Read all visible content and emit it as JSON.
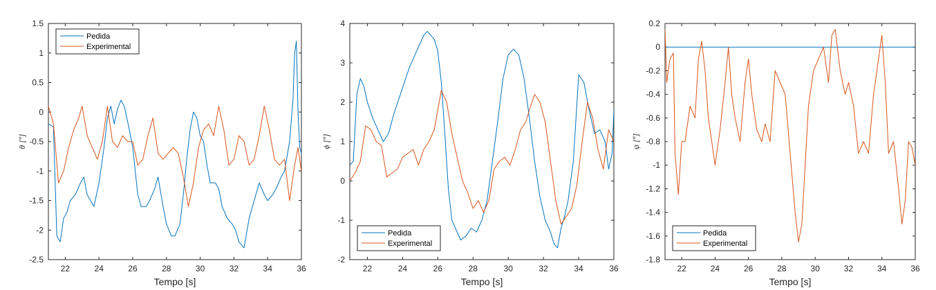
{
  "colors": {
    "pedida": "#0072BD",
    "experimental": "#D95319"
  },
  "chart_data": [
    {
      "type": "line",
      "xlabel": "Tempo [s]",
      "ylabel": "θ [º]",
      "xlim": [
        21,
        36
      ],
      "ylim": [
        -2.5,
        1.5
      ],
      "xticks": [
        22,
        24,
        26,
        28,
        30,
        32,
        34,
        36
      ],
      "yticks": [
        -2.5,
        -2,
        -1.5,
        -1,
        -0.5,
        0,
        0.5,
        1,
        1.5
      ],
      "legend": "top-left",
      "series": [
        {
          "name": "Pedida",
          "x": [
            21,
            21.3,
            21.5,
            21.7,
            21.9,
            22.1,
            22.3,
            22.6,
            22.9,
            23.1,
            23.3,
            23.5,
            23.7,
            24,
            24.3,
            24.5,
            24.7,
            24.9,
            25.1,
            25.3,
            25.5,
            25.8,
            26,
            26.3,
            26.5,
            26.8,
            27,
            27.3,
            27.5,
            27.8,
            28,
            28.3,
            28.5,
            28.8,
            29,
            29.2,
            29.4,
            29.6,
            29.8,
            30,
            30.2,
            30.4,
            30.6,
            30.9,
            31.1,
            31.3,
            31.6,
            31.9,
            32.1,
            32.3,
            32.6,
            32.9,
            33.1,
            33.3,
            33.5,
            33.8,
            34,
            34.3,
            34.5,
            34.8,
            35,
            35.3,
            35.5,
            35.6,
            35.7,
            35.8,
            35.9,
            36
          ],
          "values": [
            -0.2,
            -0.25,
            -2.1,
            -2.2,
            -1.8,
            -1.7,
            -1.5,
            -1.4,
            -1.2,
            -1.1,
            -1.4,
            -1.5,
            -1.6,
            -1.2,
            -0.6,
            -0.1,
            0.1,
            -0.2,
            0.05,
            0.2,
            0.1,
            -0.3,
            -0.6,
            -1.4,
            -1.6,
            -1.6,
            -1.5,
            -1.3,
            -1.1,
            -1.6,
            -1.9,
            -2.1,
            -2.1,
            -1.9,
            -1.4,
            -0.8,
            -0.3,
            0.0,
            -0.1,
            -0.4,
            -0.5,
            -0.9,
            -1.2,
            -1.2,
            -1.3,
            -1.6,
            -1.8,
            -1.9,
            -2.0,
            -2.2,
            -2.3,
            -1.8,
            -1.6,
            -1.4,
            -1.2,
            -1.4,
            -1.5,
            -1.4,
            -1.3,
            -1.1,
            -1.0,
            -0.5,
            0.2,
            1.0,
            1.2,
            0.0,
            -0.6,
            -0.7
          ]
        },
        {
          "name": "Experimental",
          "x": [
            21,
            21.3,
            21.6,
            21.9,
            22.2,
            22.5,
            22.8,
            23,
            23.3,
            23.6,
            23.9,
            24.2,
            24.5,
            24.8,
            25.1,
            25.4,
            25.7,
            26,
            26.3,
            26.6,
            26.9,
            27.2,
            27.5,
            27.8,
            28.1,
            28.4,
            28.7,
            29,
            29.3,
            29.6,
            29.9,
            30.2,
            30.5,
            30.8,
            31.1,
            31.4,
            31.7,
            32,
            32.3,
            32.6,
            32.9,
            33.2,
            33.5,
            33.8,
            34.1,
            34.4,
            34.7,
            35,
            35.3,
            35.6,
            35.8,
            36
          ],
          "values": [
            0.1,
            -0.2,
            -1.2,
            -1.0,
            -0.6,
            -0.3,
            -0.1,
            0.1,
            -0.4,
            -0.6,
            -0.8,
            -0.5,
            0.1,
            -0.5,
            -0.6,
            -0.4,
            -0.5,
            -0.5,
            -0.9,
            -0.8,
            -0.4,
            -0.1,
            -0.7,
            -0.8,
            -0.7,
            -0.6,
            -0.7,
            -1.1,
            -1.6,
            -1.2,
            -0.6,
            -0.3,
            -0.2,
            -0.4,
            0.1,
            -0.3,
            -0.9,
            -0.8,
            -0.4,
            -0.5,
            -0.9,
            -0.8,
            -0.4,
            0.1,
            -0.3,
            -0.8,
            -0.9,
            -0.8,
            -1.5,
            -0.9,
            -0.6,
            -1.0
          ]
        }
      ]
    },
    {
      "type": "line",
      "xlabel": "Tempo [s]",
      "ylabel": "ϕ [º]",
      "xlim": [
        21,
        36
      ],
      "ylim": [
        -2,
        4
      ],
      "xticks": [
        22,
        24,
        26,
        28,
        30,
        32,
        34,
        36
      ],
      "yticks": [
        -2,
        -1,
        0,
        1,
        2,
        3,
        4
      ],
      "legend": "bottom-left",
      "series": [
        {
          "name": "Pedida",
          "x": [
            21,
            21.2,
            21.4,
            21.6,
            21.8,
            22,
            22.3,
            22.6,
            22.9,
            23.2,
            23.5,
            23.8,
            24.1,
            24.4,
            24.7,
            25,
            25.2,
            25.4,
            25.6,
            25.8,
            26,
            26.2,
            26.4,
            26.6,
            26.8,
            27,
            27.3,
            27.6,
            27.9,
            28.2,
            28.5,
            28.8,
            29.1,
            29.4,
            29.7,
            30,
            30.3,
            30.6,
            30.9,
            31.2,
            31.5,
            31.8,
            32.1,
            32.4,
            32.6,
            32.8,
            33,
            33.2,
            33.4,
            33.7,
            34,
            34.3,
            34.6,
            34.9,
            35.2,
            35.5,
            35.7,
            35.9,
            36
          ],
          "values": [
            0.4,
            0.5,
            2.2,
            2.6,
            2.4,
            2.0,
            1.6,
            1.3,
            1.0,
            1.2,
            1.7,
            2.1,
            2.5,
            2.9,
            3.2,
            3.5,
            3.7,
            3.8,
            3.7,
            3.6,
            3.3,
            2.5,
            1.2,
            -0.2,
            -1.0,
            -1.2,
            -1.5,
            -1.4,
            -1.2,
            -1.3,
            -1.0,
            -0.5,
            0.5,
            1.5,
            2.6,
            3.2,
            3.35,
            3.2,
            2.6,
            1.6,
            0.5,
            -0.4,
            -1.0,
            -1.3,
            -1.6,
            -1.7,
            -1.2,
            -0.9,
            -0.5,
            0.5,
            2.7,
            2.5,
            1.8,
            1.2,
            1.3,
            1.0,
            0.3,
            0.7,
            1.8
          ]
        },
        {
          "name": "Experimental",
          "x": [
            21,
            21.3,
            21.6,
            21.9,
            22.2,
            22.5,
            22.8,
            23.1,
            23.4,
            23.7,
            24,
            24.3,
            24.6,
            24.9,
            25.2,
            25.5,
            25.8,
            26,
            26.2,
            26.5,
            26.8,
            27.1,
            27.4,
            27.7,
            28,
            28.3,
            28.6,
            28.9,
            29.2,
            29.5,
            29.8,
            30.1,
            30.4,
            30.7,
            31,
            31.2,
            31.5,
            31.8,
            32.1,
            32.4,
            32.7,
            33,
            33.3,
            33.6,
            33.9,
            34.2,
            34.5,
            34.8,
            35.1,
            35.4,
            35.7,
            36
          ],
          "values": [
            0.0,
            0.2,
            0.5,
            1.4,
            1.3,
            1.0,
            0.9,
            0.1,
            0.2,
            0.3,
            0.6,
            0.7,
            0.8,
            0.4,
            0.8,
            1.0,
            1.3,
            1.8,
            2.3,
            2.0,
            1.2,
            0.6,
            0.0,
            -0.3,
            -0.7,
            -0.5,
            -0.8,
            -0.5,
            0.3,
            0.5,
            0.6,
            0.4,
            0.8,
            1.3,
            1.5,
            1.8,
            2.2,
            2.0,
            1.5,
            0.5,
            -0.5,
            -1.1,
            -0.9,
            -0.7,
            -0.1,
            1.0,
            2.0,
            1.6,
            0.8,
            0.3,
            1.3,
            1.0
          ]
        }
      ]
    },
    {
      "type": "line",
      "xlabel": "Tempo [s]",
      "ylabel": "ψ [º]",
      "xlim": [
        21,
        36
      ],
      "ylim": [
        -1.8,
        0.2
      ],
      "xticks": [
        22,
        24,
        26,
        28,
        30,
        32,
        34,
        36
      ],
      "yticks": [
        -1.8,
        -1.6,
        -1.4,
        -1.2,
        -1,
        -0.8,
        -0.6,
        -0.4,
        -0.2,
        0,
        0.2
      ],
      "legend": "bottom-left",
      "series": [
        {
          "name": "Pedida",
          "x": [
            21,
            36
          ],
          "values": [
            0,
            0
          ]
        },
        {
          "name": "Experimental",
          "x": [
            21,
            21.1,
            21.3,
            21.5,
            21.6,
            21.8,
            22,
            22.2,
            22.5,
            22.8,
            23,
            23.2,
            23.4,
            23.6,
            23.8,
            24,
            24.3,
            24.6,
            24.8,
            25,
            25.2,
            25.5,
            25.8,
            26,
            26.2,
            26.5,
            26.8,
            27,
            27.3,
            27.6,
            27.9,
            28.2,
            28.5,
            28.8,
            29,
            29.2,
            29.4,
            29.6,
            29.9,
            30.2,
            30.5,
            30.8,
            31,
            31.2,
            31.5,
            31.8,
            32,
            32.3,
            32.6,
            32.9,
            33.2,
            33.5,
            33.8,
            34,
            34.2,
            34.4,
            34.7,
            35,
            35.2,
            35.4,
            35.6,
            35.8,
            36
          ],
          "values": [
            0.15,
            -0.3,
            -0.1,
            -0.05,
            -0.9,
            -1.25,
            -0.8,
            -0.8,
            -0.5,
            -0.6,
            -0.1,
            0.05,
            -0.2,
            -0.6,
            -0.8,
            -1.0,
            -0.7,
            -0.3,
            0.0,
            -0.4,
            -0.6,
            -0.8,
            -0.3,
            -0.1,
            -0.4,
            -0.7,
            -0.8,
            -0.65,
            -0.8,
            -0.2,
            -0.3,
            -0.4,
            -0.9,
            -1.4,
            -1.65,
            -1.5,
            -1.0,
            -0.5,
            -0.2,
            -0.1,
            0.0,
            -0.3,
            0.1,
            0.15,
            -0.2,
            -0.4,
            -0.3,
            -0.5,
            -0.9,
            -0.8,
            -0.9,
            -0.4,
            -0.1,
            0.1,
            -0.3,
            -0.9,
            -0.8,
            -1.2,
            -1.5,
            -1.3,
            -0.8,
            -0.85,
            -1.0
          ]
        }
      ]
    }
  ]
}
